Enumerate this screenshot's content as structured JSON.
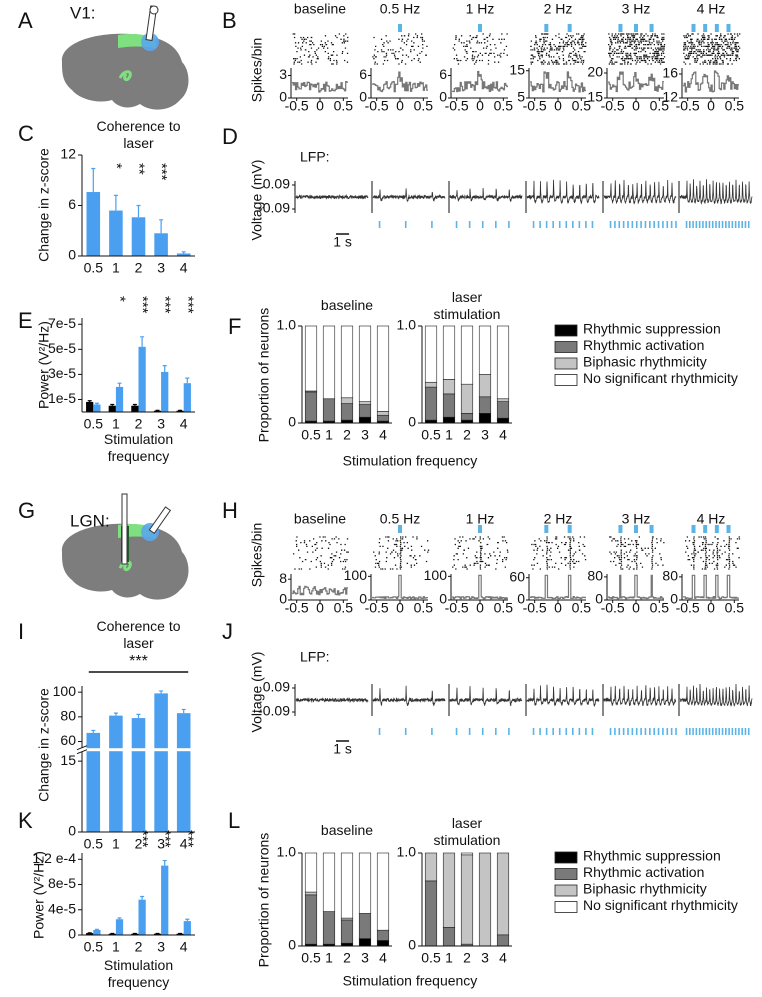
{
  "diagrams": [
    {
      "label": "A",
      "region": "V1:"
    },
    {
      "label": "G",
      "region": "LGN:"
    }
  ],
  "chart_data": [
    {
      "type": "psth",
      "label": "B",
      "ylabel": "Spikes/bin",
      "pulse_color": "#5bb4e5",
      "trace_color": "#777777",
      "xlim": [
        -0.6,
        0.6
      ],
      "xticks": [
        -0.5,
        0,
        0.5
      ],
      "subplots": [
        {
          "title": "baseline",
          "ylim": [
            0,
            4
          ],
          "yticks": [
            0,
            3
          ]
        },
        {
          "title": "0.5 Hz",
          "ylim": [
            0,
            8
          ],
          "yticks": [
            0,
            6
          ]
        },
        {
          "title": "1 Hz",
          "ylim": [
            0,
            8
          ],
          "yticks": [
            0,
            6
          ]
        },
        {
          "title": "2 Hz",
          "ylim": [
            5,
            16
          ],
          "yticks": [
            5,
            15
          ]
        },
        {
          "title": "3 Hz",
          "ylim": [
            15,
            21
          ],
          "yticks": [
            15,
            20
          ]
        },
        {
          "title": "4 Hz",
          "ylim": [
            12,
            17
          ],
          "yticks": [
            12,
            16
          ]
        }
      ]
    },
    {
      "type": "lfp",
      "label": "D",
      "annotation": "LFP:",
      "ylabel": "Voltage (mV)",
      "ylim": [
        -0.15,
        0.15
      ],
      "yticks": [
        0.09,
        -0.09
      ],
      "scalebar": "1 s",
      "pulse_color": "#5bb4e5"
    },
    {
      "type": "bar",
      "label": "C",
      "title": "Coherence to laser",
      "ylabel": "Change in z-score",
      "categories": [
        "0.5",
        "1",
        "2",
        "3",
        "4"
      ],
      "values": [
        7.6,
        5.4,
        4.6,
        2.7,
        0.3
      ],
      "errors": [
        2.8,
        1.8,
        1.4,
        1.6,
        0.2
      ],
      "color": "#4a9ff0",
      "ylim": [
        0,
        12
      ],
      "yticks": [
        0,
        6,
        12
      ],
      "significance": [
        null,
        "*",
        "**",
        "***",
        null
      ]
    },
    {
      "type": "grouped_bar",
      "label": "E",
      "ylabel": "Power (V²/Hz)",
      "xlabel": "Stimulation frequency",
      "categories": [
        "0.5",
        "1",
        "2",
        "3",
        "4"
      ],
      "series": [
        {
          "color": "#000000",
          "values": [
            8e-06,
            5e-06,
            5e-06,
            1e-06,
            1e-06
          ],
          "errors": [
            1e-06,
            1e-06,
            1e-06,
            3e-07,
            3e-07
          ]
        },
        {
          "color": "#4a9ff0",
          "values": [
            6e-06,
            2e-05,
            5.2e-05,
            3.2e-05,
            2.3e-05
          ],
          "errors": [
            1e-06,
            3e-06,
            8e-06,
            5e-06,
            4e-06
          ]
        }
      ],
      "ylim": [
        0,
        7.5e-05
      ],
      "yticks": [
        {
          "value": 1e-05,
          "label": "1e-5"
        },
        {
          "value": 3e-05,
          "label": "3e-5"
        },
        {
          "value": 5e-05,
          "label": "5e-5"
        },
        {
          "value": 7e-05,
          "label": "7e-5"
        }
      ],
      "significance": [
        null,
        "*",
        "***",
        "***",
        "***"
      ]
    },
    {
      "type": "stacked_bar",
      "label": "F",
      "ylabel": "Proportion of neurons",
      "xlabel": "Stimulation frequency",
      "categories": [
        "0.5",
        "1",
        "2",
        "3",
        "4"
      ],
      "ylim": [
        0,
        1
      ],
      "yticks": [
        0,
        {
          "value": 1,
          "label": "1.0"
        }
      ],
      "legend": [
        {
          "name": "Rhythmic suppression",
          "color": "#000000"
        },
        {
          "name": "Rhythmic activation",
          "color": "#7a7a7a"
        },
        {
          "name": "Biphasic rhythmicity",
          "color": "#c4c4c4"
        },
        {
          "name": "No significant rhythmicity",
          "color": "#ffffff"
        }
      ],
      "groups": [
        {
          "title": "baseline",
          "series": [
            [
              0.02,
              0.02,
              0.03,
              0.06,
              0.02
            ],
            [
              0.3,
              0.23,
              0.17,
              0.13,
              0.06
            ],
            [
              0.01,
              0,
              0.06,
              0.03,
              0.04
            ],
            [
              0.67,
              0.75,
              0.74,
              0.78,
              0.88
            ]
          ]
        },
        {
          "title": "laser stimulation",
          "series": [
            [
              0.03,
              0.06,
              0.03,
              0.1,
              0.05
            ],
            [
              0.34,
              0.24,
              0.07,
              0.17,
              0.17
            ],
            [
              0.05,
              0.15,
              0.3,
              0.23,
              0.03
            ],
            [
              0.58,
              0.55,
              0.6,
              0.5,
              0.75
            ]
          ]
        }
      ]
    },
    {
      "type": "psth",
      "label": "H",
      "ylabel": "Spikes/bin",
      "pulse_color": "#5bb4e5",
      "trace_color": "#777777",
      "xlim": [
        -0.6,
        0.6
      ],
      "xticks": [
        -0.5,
        0,
        0.5
      ],
      "subplots": [
        {
          "title": "baseline",
          "ylim": [
            0,
            10
          ],
          "yticks": [
            0,
            8
          ]
        },
        {
          "title": "0.5 Hz",
          "ylim": [
            0,
            110
          ],
          "yticks": [
            0,
            100
          ]
        },
        {
          "title": "1 Hz",
          "ylim": [
            0,
            110
          ],
          "yticks": [
            0,
            100
          ]
        },
        {
          "title": "2 Hz",
          "ylim": [
            0,
            70
          ],
          "yticks": [
            0,
            60
          ]
        },
        {
          "title": "3 Hz",
          "ylim": [
            0,
            90
          ],
          "yticks": [
            0,
            80
          ]
        },
        {
          "title": "4 Hz",
          "ylim": [
            0,
            90
          ],
          "yticks": [
            0,
            80
          ]
        }
      ]
    },
    {
      "type": "lfp",
      "label": "J",
      "annotation": "LFP:",
      "ylabel": "Voltage (mV)",
      "ylim": [
        -0.15,
        0.15
      ],
      "yticks": [
        0.09,
        -0.09
      ],
      "scalebar": "1 s",
      "pulse_color": "#5bb4e5"
    },
    {
      "type": "bar",
      "label": "I",
      "title": "Coherence to laser",
      "ylabel": "Change in z-score",
      "categories": [
        "0.5",
        "1",
        "2",
        "3",
        "4"
      ],
      "values": [
        67,
        81,
        79,
        99,
        83
      ],
      "errors": [
        2,
        2,
        3,
        2,
        3
      ],
      "color": "#4a9ff0",
      "ylim": [
        0,
        105
      ],
      "ybreak": [
        17,
        55
      ],
      "yticks": [
        0,
        15,
        60,
        80,
        100
      ],
      "significance_span": "***"
    },
    {
      "type": "grouped_bar",
      "label": "K",
      "ylabel": "Power (V²/Hz)",
      "xlabel": "Stimulation frequency",
      "categories": [
        "0.5",
        "1",
        "2",
        "3",
        "4"
      ],
      "series": [
        {
          "color": "#000000",
          "values": [
            3e-06,
            2e-06,
            2e-06,
            2e-06,
            2e-06
          ],
          "errors": [
            5e-07,
            5e-07,
            5e-07,
            5e-07,
            5e-07
          ]
        },
        {
          "color": "#4a9ff0",
          "values": [
            8e-06,
            2.5e-05,
            5.6e-05,
            0.00011,
            2.2e-05
          ],
          "errors": [
            1e-06,
            2e-06,
            5e-06,
            8e-06,
            3e-06
          ]
        }
      ],
      "ylim": [
        0,
        0.00013
      ],
      "yticks": [
        0,
        {
          "value": 4e-05,
          "label": "4e-5"
        },
        {
          "value": 8e-05,
          "label": "8e-5"
        },
        {
          "value": 0.00012,
          "label": "1.2 e-4"
        }
      ],
      "significance": [
        null,
        null,
        "***",
        "***",
        "***"
      ]
    },
    {
      "type": "stacked_bar",
      "label": "L",
      "ylabel": "Proportion of neurons",
      "xlabel": "Stimulation frequency",
      "categories": [
        "0.5",
        "1",
        "2",
        "3",
        "4"
      ],
      "ylim": [
        0,
        1
      ],
      "yticks": [
        0,
        {
          "value": 1,
          "label": "1.0"
        }
      ],
      "legend": [
        {
          "name": "Rhythmic suppression",
          "color": "#000000"
        },
        {
          "name": "Rhythmic activation",
          "color": "#7a7a7a"
        },
        {
          "name": "Biphasic rhythmicity",
          "color": "#c4c4c4"
        },
        {
          "name": "No significant rhythmicity",
          "color": "#ffffff"
        }
      ],
      "groups": [
        {
          "title": "baseline",
          "series": [
            [
              0.02,
              0.02,
              0.03,
              0.08,
              0.06
            ],
            [
              0.53,
              0.35,
              0.25,
              0.27,
              0.11
            ],
            [
              0.03,
              0,
              0.02,
              0,
              0
            ],
            [
              0.42,
              0.63,
              0.7,
              0.65,
              0.83
            ]
          ]
        },
        {
          "title": "laser stimulation",
          "series": [
            [
              0,
              0,
              0,
              0,
              0
            ],
            [
              0.7,
              0.2,
              0.02,
              0,
              0.12
            ],
            [
              0.3,
              0.8,
              0.96,
              1.0,
              0.88
            ],
            [
              0,
              0,
              0.02,
              0,
              0
            ]
          ]
        }
      ]
    }
  ]
}
